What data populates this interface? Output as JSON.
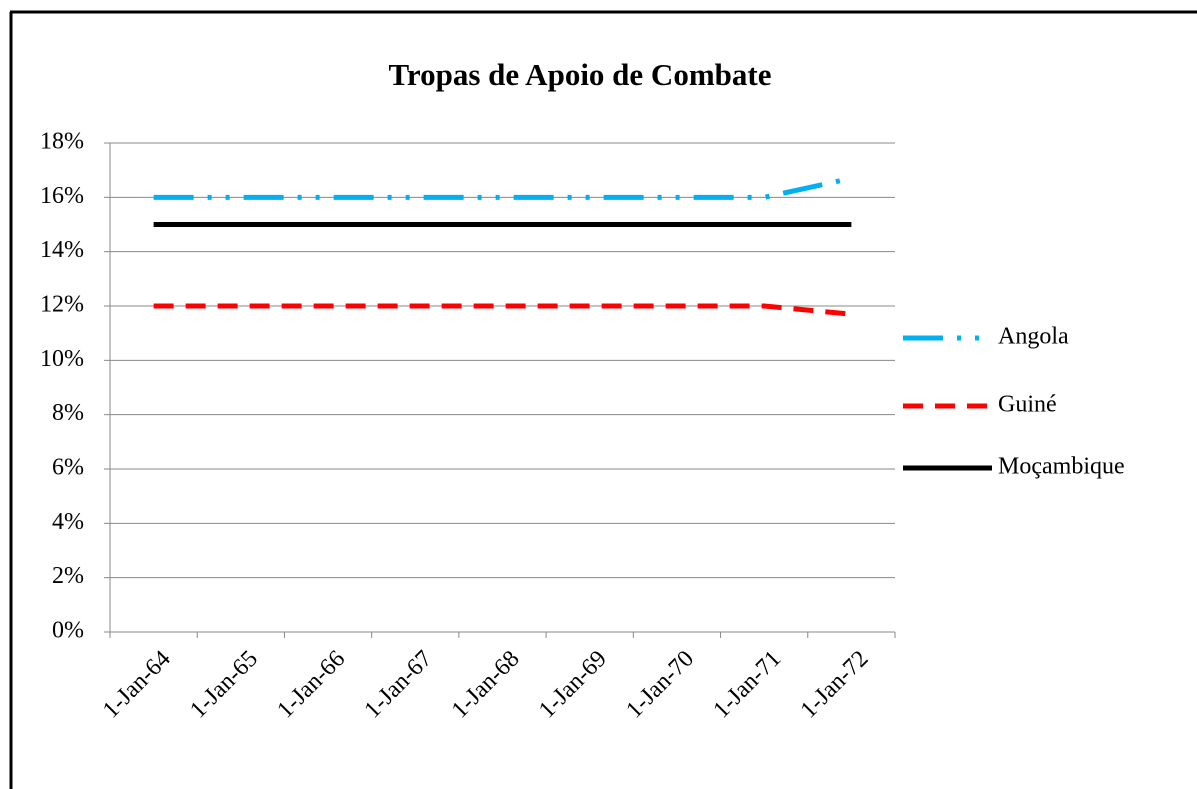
{
  "chart_data": {
    "type": "line",
    "title": "Tropas de Apoio de Combate",
    "categories": [
      "1-Jan-64",
      "1-Jan-65",
      "1-Jan-66",
      "1-Jan-67",
      "1-Jan-68",
      "1-Jan-69",
      "1-Jan-70",
      "1-Jan-71",
      "1-Jan-72"
    ],
    "series": [
      {
        "name": "Angola",
        "color": "#00b0f0",
        "dash": "dashdot",
        "values": [
          16,
          16,
          16,
          16,
          16,
          16,
          16,
          16,
          16.7
        ]
      },
      {
        "name": "Guiné",
        "color": "#ff0000",
        "dash": "dash",
        "values": [
          12,
          12,
          12,
          12,
          12,
          12,
          12,
          12,
          11.7
        ]
      },
      {
        "name": "Moçambique",
        "color": "#000000",
        "dash": "solid",
        "values": [
          15,
          15,
          15,
          15,
          15,
          15,
          15,
          15,
          15
        ]
      }
    ],
    "ylim": [
      0,
      18
    ],
    "yticks": [
      {
        "value": 0,
        "label": "0%"
      },
      {
        "value": 2,
        "label": "2%"
      },
      {
        "value": 4,
        "label": "4%"
      },
      {
        "value": 6,
        "label": "6%"
      },
      {
        "value": 8,
        "label": "8%"
      },
      {
        "value": 10,
        "label": "10%"
      },
      {
        "value": 12,
        "label": "12%"
      },
      {
        "value": 14,
        "label": "14%"
      },
      {
        "value": 16,
        "label": "16%"
      },
      {
        "value": 18,
        "label": "18%"
      }
    ],
    "grid": true,
    "legend": "right"
  }
}
